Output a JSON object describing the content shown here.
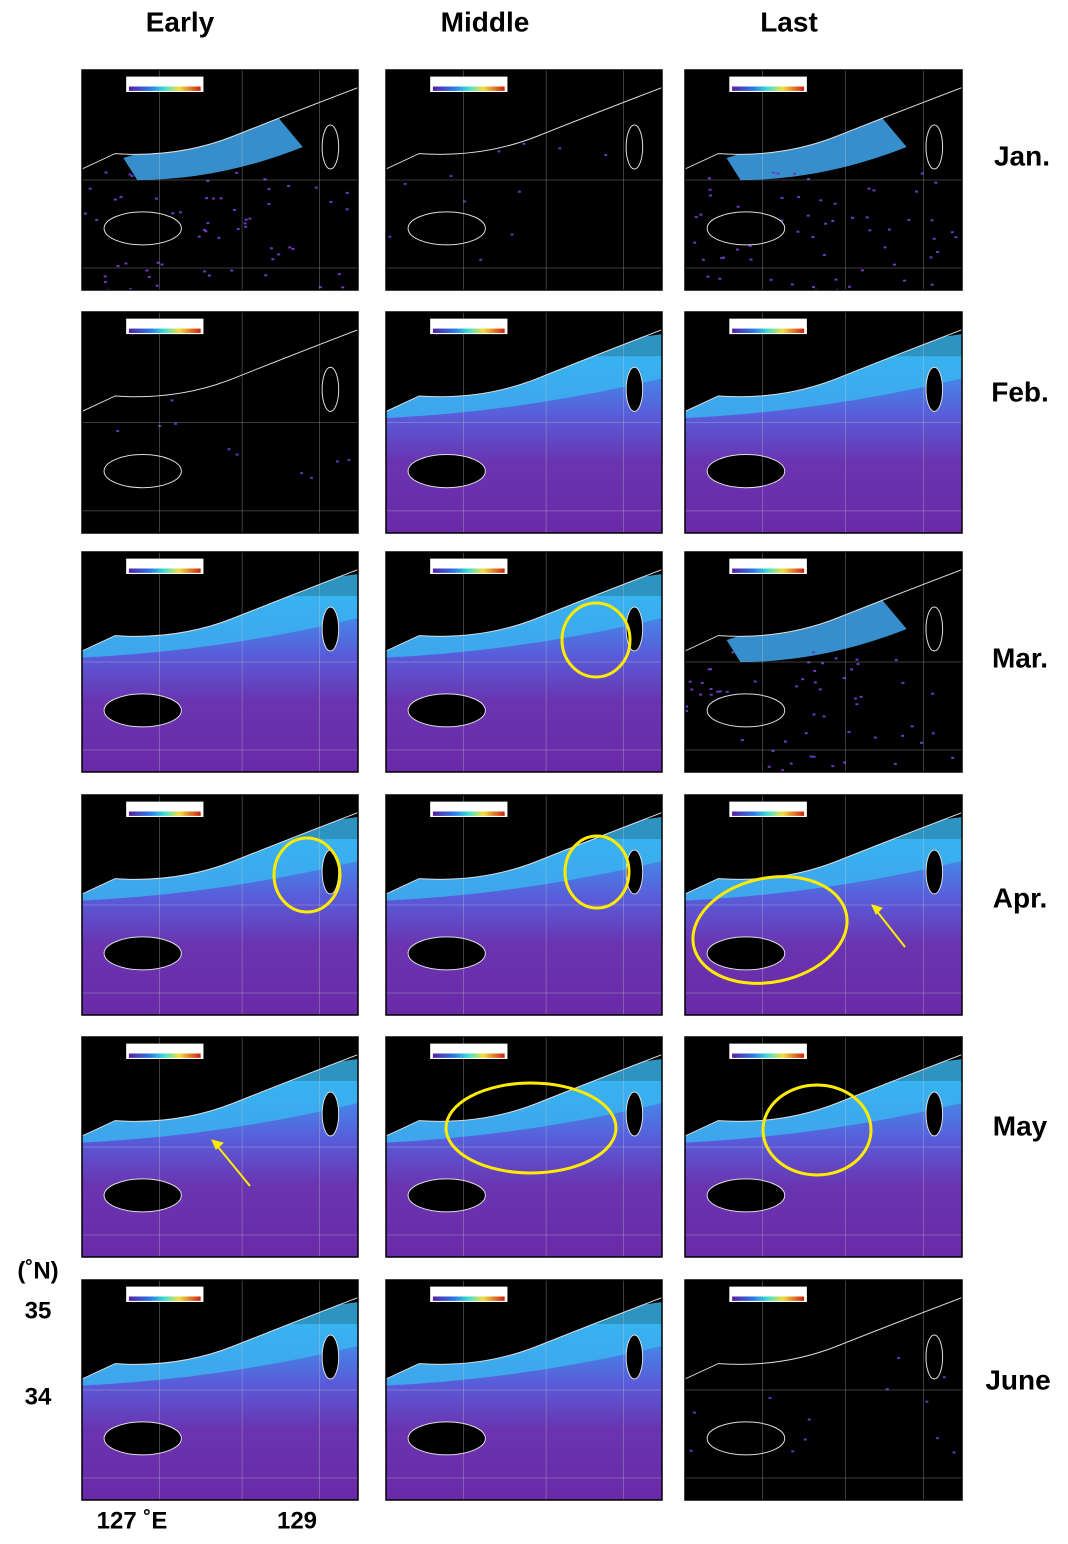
{
  "columns": [
    "Early",
    "Middle",
    "Last"
  ],
  "rows": [
    "Jan.",
    "Feb.",
    "Mar.",
    "Apr.",
    "May",
    "June"
  ],
  "latitude": {
    "unit": "(˚N)",
    "labels": [
      "35",
      "34"
    ]
  },
  "longitude": {
    "labels": [
      "127 ˚E",
      "129"
    ]
  }
}
